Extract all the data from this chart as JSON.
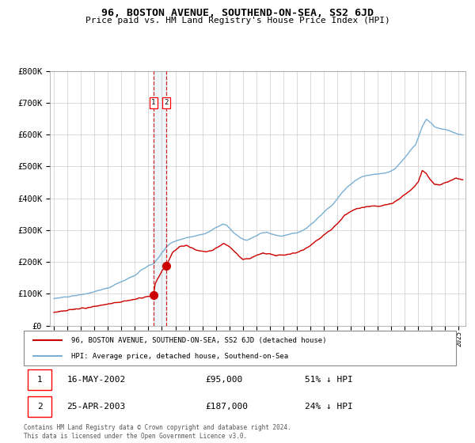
{
  "title": "96, BOSTON AVENUE, SOUTHEND-ON-SEA, SS2 6JD",
  "subtitle": "Price paid vs. HM Land Registry's House Price Index (HPI)",
  "hpi_color": "#7ab0d4",
  "price_color": "#cc0000",
  "transaction1": {
    "date": "16-MAY-2002",
    "price": 95000,
    "label": "51% ↓ HPI",
    "year": 2002.37
  },
  "transaction2": {
    "date": "25-APR-2003",
    "price": 187000,
    "label": "24% ↓ HPI",
    "year": 2003.31
  },
  "legend1": "96, BOSTON AVENUE, SOUTHEND-ON-SEA, SS2 6JD (detached house)",
  "legend2": "HPI: Average price, detached house, Southend-on-Sea",
  "footer": "Contains HM Land Registry data © Crown copyright and database right 2024.\nThis data is licensed under the Open Government Licence v3.0.",
  "ylim": [
    0,
    800000
  ],
  "yticks": [
    0,
    100000,
    200000,
    300000,
    400000,
    500000,
    600000,
    700000,
    800000
  ],
  "xlim_start": 1994.7,
  "xlim_end": 2025.5,
  "background_color": "#ffffff",
  "grid_color": "#cccccc"
}
